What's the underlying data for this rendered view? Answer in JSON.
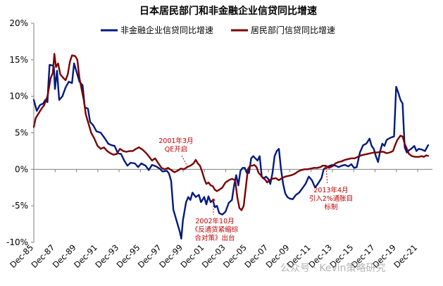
{
  "chart_data": {
    "type": "line",
    "title": "日本居民部门和非金融企业信贷同比增速",
    "xlabel": "",
    "ylabel": "",
    "ylim": [
      -10,
      20
    ],
    "yticks": [
      "20%",
      "15%",
      "10%",
      "5%",
      "0%",
      "-5%",
      "-10%"
    ],
    "ytick_values": [
      20,
      15,
      10,
      5,
      0,
      -5,
      -10
    ],
    "xtick_labels": [
      "Dec-85",
      "Dec-87",
      "Dec-89",
      "Dec-91",
      "Dec-93",
      "Dec-95",
      "Dec-97",
      "Dec-99",
      "Dec-01",
      "Dec-03",
      "Dec-05",
      "Dec-07",
      "Dec-09",
      "Dec-11",
      "Dec-13",
      "Dec-15",
      "Dec-17",
      "Dec-19",
      "Dec-21"
    ],
    "xtick_values": [
      1985.92,
      1987.92,
      1989.92,
      1991.92,
      1993.92,
      1995.92,
      1997.92,
      1999.92,
      2001.92,
      2003.92,
      2005.92,
      2007.92,
      2009.92,
      2011.92,
      2013.92,
      2015.92,
      2017.92,
      2019.92,
      2021.92
    ],
    "xlim": [
      1985.92,
      2023.3
    ],
    "grid": false,
    "legend_position": "top",
    "series": [
      {
        "name": "非金融企业信贷同比增速",
        "color": "#001a80",
        "points": [
          [
            1985.92,
            9.5
          ],
          [
            1986.2,
            8
          ],
          [
            1986.5,
            8.8
          ],
          [
            1986.8,
            9
          ],
          [
            1987.0,
            9.5
          ],
          [
            1987.2,
            9.2
          ],
          [
            1987.3,
            12
          ],
          [
            1987.4,
            14.3
          ],
          [
            1987.7,
            14.2
          ],
          [
            1987.8,
            14
          ],
          [
            1987.9,
            11
          ],
          [
            1988.1,
            13.5
          ],
          [
            1988.3,
            9.5
          ],
          [
            1988.6,
            10
          ],
          [
            1988.9,
            11.2
          ],
          [
            1989.2,
            12
          ],
          [
            1989.5,
            11.8
          ],
          [
            1989.7,
            14.5
          ],
          [
            1989.9,
            13.5
          ],
          [
            1990.2,
            12
          ],
          [
            1990.5,
            11.5
          ],
          [
            1990.7,
            8.5
          ],
          [
            1991.0,
            8.3
          ],
          [
            1991.2,
            6.5
          ],
          [
            1991.5,
            6
          ],
          [
            1991.8,
            5.2
          ],
          [
            1992.2,
            5
          ],
          [
            1992.6,
            4.2
          ],
          [
            1992.9,
            3.5
          ],
          [
            1993.2,
            3.3
          ],
          [
            1993.5,
            3.2
          ],
          [
            1993.8,
            2.2
          ],
          [
            1994.1,
            2.1
          ],
          [
            1994.4,
            1.2
          ],
          [
            1994.7,
            0.5
          ],
          [
            1995.0,
            0.9
          ],
          [
            1995.4,
            0.8
          ],
          [
            1995.7,
            0.3
          ],
          [
            1996.0,
            0.8
          ],
          [
            1996.4,
            0.5
          ],
          [
            1996.7,
            -0.1
          ],
          [
            1997.0,
            0.6
          ],
          [
            1997.4,
            0.4
          ],
          [
            1997.7,
            0.1
          ],
          [
            1998.0,
            -0.3
          ],
          [
            1998.4,
            -0.2
          ],
          [
            1998.6,
            -0.6
          ],
          [
            1998.8,
            -1.6
          ],
          [
            1999.0,
            -5.5
          ],
          [
            1999.3,
            -7
          ],
          [
            1999.6,
            -8.5
          ],
          [
            1999.75,
            -9.5
          ],
          [
            1999.9,
            -7
          ],
          [
            2000.2,
            -4.5
          ],
          [
            2000.4,
            -3.8
          ],
          [
            2000.6,
            -4.2
          ],
          [
            2000.8,
            -3.2
          ],
          [
            2001.1,
            -3.8
          ],
          [
            2001.4,
            -3.5
          ],
          [
            2001.6,
            -4.5
          ],
          [
            2001.9,
            -3.8
          ],
          [
            2002.1,
            -4.8
          ],
          [
            2002.3,
            -3.7
          ],
          [
            2002.5,
            -4.5
          ],
          [
            2002.7,
            -4.2
          ],
          [
            2002.9,
            -5.2
          ],
          [
            2003.1,
            -5
          ],
          [
            2003.3,
            -6
          ],
          [
            2003.6,
            -6.2
          ],
          [
            2003.9,
            -5.8
          ],
          [
            2004.2,
            -4.6
          ],
          [
            2004.5,
            -4.2
          ],
          [
            2004.7,
            -2.2
          ],
          [
            2004.9,
            -0.8
          ],
          [
            2005.1,
            -2.2
          ],
          [
            2005.3,
            -0.2
          ],
          [
            2005.5,
            0.2
          ],
          [
            2005.7,
            0.2
          ],
          [
            2005.9,
            -0.5
          ],
          [
            2006.1,
            -0.5
          ],
          [
            2006.3,
            1.5
          ],
          [
            2006.5,
            1.8
          ],
          [
            2006.7,
            1.5
          ],
          [
            2006.9,
            1.2
          ],
          [
            2007.1,
            1.8
          ],
          [
            2007.3,
            -1
          ],
          [
            2007.5,
            -1.2
          ],
          [
            2007.7,
            -1
          ],
          [
            2007.9,
            -1.3
          ],
          [
            2008.1,
            -2
          ],
          [
            2008.3,
            -0.5
          ],
          [
            2008.5,
            1.8
          ],
          [
            2008.7,
            2.5
          ],
          [
            2008.9,
            2.8
          ],
          [
            2009.1,
            0
          ],
          [
            2009.3,
            -2
          ],
          [
            2009.5,
            -3.3
          ],
          [
            2009.7,
            -3.8
          ],
          [
            2009.9,
            -4
          ],
          [
            2010.2,
            -4.1
          ],
          [
            2010.5,
            -3.5
          ],
          [
            2010.8,
            -3.2
          ],
          [
            2011.1,
            -2.6
          ],
          [
            2011.4,
            -2
          ],
          [
            2011.7,
            -1
          ],
          [
            2012.0,
            -1.5
          ],
          [
            2012.3,
            -2.5
          ],
          [
            2012.6,
            -1.9
          ],
          [
            2012.9,
            -1.2
          ],
          [
            2013.1,
            0
          ],
          [
            2013.4,
            0.3
          ],
          [
            2013.7,
            0.5
          ],
          [
            2013.9,
            0.6
          ],
          [
            2014.2,
            0.5
          ],
          [
            2014.5,
            0.3
          ],
          [
            2014.8,
            0.5
          ],
          [
            2015.1,
            0.6
          ],
          [
            2015.4,
            0.4
          ],
          [
            2015.7,
            0.7
          ],
          [
            2015.95,
            0.2
          ],
          [
            2016.2,
            0.3
          ],
          [
            2016.5,
            2.3
          ],
          [
            2016.8,
            3.3
          ],
          [
            2017.1,
            3.5
          ],
          [
            2017.4,
            4.2
          ],
          [
            2017.6,
            3.2
          ],
          [
            2017.8,
            2.8
          ],
          [
            2018.0,
            1.8
          ],
          [
            2018.2,
            1
          ],
          [
            2018.4,
            2.5
          ],
          [
            2018.6,
            3.5
          ],
          [
            2018.8,
            3.2
          ],
          [
            2019.0,
            4
          ],
          [
            2019.2,
            4.2
          ],
          [
            2019.5,
            4.4
          ],
          [
            2019.7,
            4.5
          ],
          [
            2019.9,
            11.3
          ],
          [
            2020.1,
            10.5
          ],
          [
            2020.3,
            9.5
          ],
          [
            2020.5,
            9
          ],
          [
            2020.7,
            3
          ],
          [
            2020.9,
            2.3
          ],
          [
            2021.1,
            2.6
          ],
          [
            2021.3,
            2.8
          ],
          [
            2021.6,
            3.2
          ],
          [
            2021.8,
            2.5
          ],
          [
            2022.0,
            2.8
          ],
          [
            2022.3,
            2.7
          ],
          [
            2022.6,
            2.5
          ],
          [
            2022.9,
            3.3
          ]
        ]
      },
      {
        "name": "居民部门信贷同比增速",
        "color": "#7b0000",
        "points": [
          [
            1985.92,
            5.8
          ],
          [
            1986.1,
            7
          ],
          [
            1986.3,
            7.5
          ],
          [
            1986.6,
            8.2
          ],
          [
            1986.9,
            8.8
          ],
          [
            1987.2,
            10
          ],
          [
            1987.5,
            12.5
          ],
          [
            1987.7,
            13.2
          ],
          [
            1987.85,
            15.8
          ],
          [
            1988.0,
            14
          ],
          [
            1988.2,
            14.5
          ],
          [
            1988.4,
            13
          ],
          [
            1988.7,
            12.5
          ],
          [
            1988.9,
            12.2
          ],
          [
            1989.1,
            13
          ],
          [
            1989.3,
            14.7
          ],
          [
            1989.5,
            15.6
          ],
          [
            1989.8,
            15.5
          ],
          [
            1990.0,
            15
          ],
          [
            1990.2,
            12.5
          ],
          [
            1990.4,
            11
          ],
          [
            1990.6,
            9.5
          ],
          [
            1990.8,
            7.5
          ],
          [
            1991.0,
            6.5
          ],
          [
            1991.3,
            5
          ],
          [
            1991.6,
            4.2
          ],
          [
            1991.9,
            3.2
          ],
          [
            1992.2,
            2.8
          ],
          [
            1992.5,
            3
          ],
          [
            1992.8,
            2.5
          ],
          [
            1993.1,
            2.2
          ],
          [
            1993.4,
            2
          ],
          [
            1993.7,
            2.1
          ],
          [
            1994.0,
            2.8
          ],
          [
            1994.3,
            2.5
          ],
          [
            1994.6,
            2.4
          ],
          [
            1994.9,
            2.5
          ],
          [
            1995.2,
            2.5
          ],
          [
            1995.5,
            2.8
          ],
          [
            1995.8,
            3
          ],
          [
            1996.1,
            2.7
          ],
          [
            1996.4,
            2.3
          ],
          [
            1996.7,
            1.8
          ],
          [
            1997.0,
            1.2
          ],
          [
            1997.3,
            1.5
          ],
          [
            1997.6,
            0.8
          ],
          [
            1997.9,
            0.2
          ],
          [
            1998.2,
            0
          ],
          [
            1998.5,
            0.2
          ],
          [
            1998.8,
            -0.1
          ],
          [
            1999.1,
            -0.4
          ],
          [
            1999.4,
            -0.2
          ],
          [
            1999.7,
            0.1
          ],
          [
            2000.0,
            0
          ],
          [
            2000.3,
            0.3
          ],
          [
            2000.6,
            0.5
          ],
          [
            2000.9,
            0.8
          ],
          [
            2001.1,
            1.3
          ],
          [
            2001.3,
            0.8
          ],
          [
            2001.5,
            0.5
          ],
          [
            2001.7,
            -0.3
          ],
          [
            2001.9,
            -1.3
          ],
          [
            2002.1,
            -2
          ],
          [
            2002.3,
            -1.8
          ],
          [
            2002.5,
            -2.2
          ],
          [
            2002.7,
            -2.3
          ],
          [
            2002.9,
            -2.8
          ],
          [
            2003.1,
            -3
          ],
          [
            2003.3,
            -2.8
          ],
          [
            2003.6,
            -2.5
          ],
          [
            2003.9,
            -1.8
          ],
          [
            2004.2,
            -1.5
          ],
          [
            2004.5,
            -1.3
          ],
          [
            2004.8,
            -1.5
          ],
          [
            2005.0,
            -3.8
          ],
          [
            2005.2,
            -5.3
          ],
          [
            2005.4,
            -5.6
          ],
          [
            2005.6,
            -5
          ],
          [
            2005.8,
            -2.5
          ],
          [
            2006.0,
            0
          ],
          [
            2006.2,
            0.5
          ],
          [
            2006.4,
            0.5
          ],
          [
            2006.6,
            0.6
          ],
          [
            2006.8,
            0.3
          ],
          [
            2007.0,
            -0.5
          ],
          [
            2007.2,
            -0.8
          ],
          [
            2007.4,
            -1.2
          ],
          [
            2007.6,
            -1.4
          ],
          [
            2007.8,
            -1.8
          ],
          [
            2008.0,
            -1.5
          ],
          [
            2008.3,
            -1.3
          ],
          [
            2008.6,
            -1.2
          ],
          [
            2008.9,
            -1.5
          ],
          [
            2009.2,
            -1.2
          ],
          [
            2009.5,
            -1
          ],
          [
            2009.8,
            -0.9
          ],
          [
            2010.1,
            -0.8
          ],
          [
            2010.4,
            -0.6
          ],
          [
            2010.7,
            -0.3
          ],
          [
            2011.0,
            -0.1
          ],
          [
            2011.3,
            0
          ],
          [
            2011.6,
            0
          ],
          [
            2011.9,
            0.1
          ],
          [
            2012.2,
            0.2
          ],
          [
            2012.5,
            0.2
          ],
          [
            2012.8,
            0.3
          ],
          [
            2013.0,
            0.5
          ],
          [
            2013.3,
            0.5
          ],
          [
            2013.6,
            0.2
          ],
          [
            2013.9,
            0.4
          ],
          [
            2014.2,
            0.8
          ],
          [
            2014.5,
            1
          ],
          [
            2014.8,
            1.1
          ],
          [
            2015.1,
            1.3
          ],
          [
            2015.4,
            1.4
          ],
          [
            2015.7,
            1.5
          ],
          [
            2016.0,
            1.5
          ],
          [
            2016.3,
            1.7
          ],
          [
            2016.6,
            1.9
          ],
          [
            2016.9,
            2
          ],
          [
            2017.2,
            2.1
          ],
          [
            2017.5,
            2.2
          ],
          [
            2017.8,
            2.3
          ],
          [
            2018.1,
            2.3
          ],
          [
            2018.4,
            2.4
          ],
          [
            2018.7,
            2.4
          ],
          [
            2019.0,
            2.2
          ],
          [
            2019.3,
            2.3
          ],
          [
            2019.6,
            2.5
          ],
          [
            2019.8,
            3.3
          ],
          [
            2020.0,
            4
          ],
          [
            2020.3,
            4.6
          ],
          [
            2020.5,
            4.5
          ],
          [
            2020.7,
            3.5
          ],
          [
            2020.9,
            2.8
          ],
          [
            2021.1,
            2.1
          ],
          [
            2021.4,
            1.8
          ],
          [
            2021.7,
            1.7
          ],
          [
            2022.0,
            1.7
          ],
          [
            2022.3,
            1.8
          ],
          [
            2022.5,
            1.7
          ],
          [
            2022.7,
            1.9
          ],
          [
            2022.9,
            1.85
          ]
        ]
      }
    ],
    "annotations": [
      {
        "lines": [
          "2001年3月",
          "QE开启"
        ],
        "x": 2001.2,
        "y": 1.1
      },
      {
        "lines": [
          "2002年10月",
          "《反通货紧缩综",
          "合对策》出台"
        ],
        "x": 2002.8,
        "y": -2.8
      },
      {
        "lines": [
          "2013年4月",
          "引入2%通胀目",
          "标制"
        ],
        "x": 2013.3,
        "y": 0.2
      }
    ]
  },
  "watermark": "公众号 · Kevin策略研究"
}
